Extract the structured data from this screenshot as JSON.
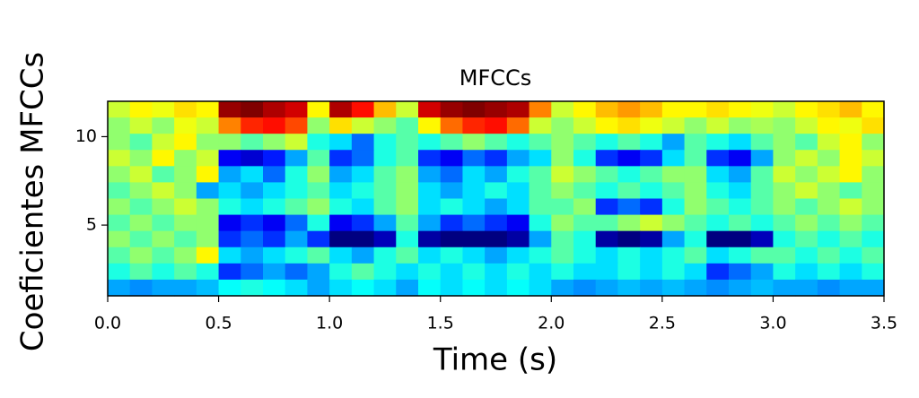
{
  "chart_data": {
    "type": "heatmap",
    "title": "MFCCs",
    "x_label": "Time (s)",
    "y_label": "Coeficientes MFCCs",
    "colormap": "jet",
    "xlim": [
      0,
      3.5
    ],
    "xticks": [
      {
        "value": 0,
        "label": "0.0"
      },
      0.5,
      {
        "value": 1,
        "label": "1.0"
      },
      1.5,
      {
        "value": 2,
        "label": "2.0"
      },
      2.5,
      {
        "value": 3,
        "label": "3.0"
      },
      3.5
    ],
    "ylim": [
      1,
      12
    ],
    "yticks": [
      5,
      10
    ],
    "values": [
      [
        0.55,
        0.6,
        0.58,
        0.62,
        0.6,
        0.9,
        0.92,
        0.88,
        0.85,
        0.6,
        0.88,
        0.8,
        0.65,
        0.55,
        0.85,
        0.9,
        0.92,
        0.9,
        0.88,
        0.7,
        0.55,
        0.6,
        0.65,
        0.68,
        0.65,
        0.6,
        0.6,
        0.62,
        0.6,
        0.58,
        0.55,
        0.6,
        0.62,
        0.65,
        0.6
      ],
      [
        0.5,
        0.55,
        0.5,
        0.58,
        0.55,
        0.7,
        0.78,
        0.8,
        0.75,
        0.5,
        0.62,
        0.55,
        0.5,
        0.45,
        0.6,
        0.72,
        0.78,
        0.8,
        0.72,
        0.55,
        0.5,
        0.55,
        0.6,
        0.62,
        0.58,
        0.55,
        0.5,
        0.55,
        0.5,
        0.52,
        0.5,
        0.55,
        0.6,
        0.58,
        0.62
      ],
      [
        0.5,
        0.45,
        0.55,
        0.6,
        0.5,
        0.5,
        0.45,
        0.5,
        0.55,
        0.4,
        0.35,
        0.25,
        0.4,
        0.45,
        0.4,
        0.45,
        0.5,
        0.45,
        0.4,
        0.45,
        0.5,
        0.45,
        0.4,
        0.45,
        0.4,
        0.3,
        0.45,
        0.4,
        0.35,
        0.45,
        0.5,
        0.45,
        0.55,
        0.6,
        0.5
      ],
      [
        0.55,
        0.5,
        0.6,
        0.5,
        0.55,
        0.15,
        0.12,
        0.18,
        0.3,
        0.45,
        0.2,
        0.25,
        0.4,
        0.45,
        0.2,
        0.15,
        0.25,
        0.2,
        0.3,
        0.35,
        0.5,
        0.4,
        0.2,
        0.15,
        0.2,
        0.35,
        0.45,
        0.2,
        0.15,
        0.3,
        0.5,
        0.55,
        0.5,
        0.6,
        0.55
      ],
      [
        0.5,
        0.55,
        0.45,
        0.5,
        0.6,
        0.3,
        0.35,
        0.25,
        0.4,
        0.5,
        0.3,
        0.35,
        0.45,
        0.5,
        0.3,
        0.25,
        0.35,
        0.3,
        0.4,
        0.45,
        0.55,
        0.5,
        0.45,
        0.4,
        0.45,
        0.5,
        0.5,
        0.35,
        0.3,
        0.45,
        0.55,
        0.5,
        0.55,
        0.6,
        0.5
      ],
      [
        0.45,
        0.5,
        0.55,
        0.5,
        0.3,
        0.35,
        0.3,
        0.35,
        0.4,
        0.45,
        0.35,
        0.4,
        0.45,
        0.5,
        0.35,
        0.3,
        0.35,
        0.4,
        0.35,
        0.45,
        0.5,
        0.45,
        0.4,
        0.45,
        0.4,
        0.45,
        0.5,
        0.4,
        0.35,
        0.45,
        0.5,
        0.55,
        0.5,
        0.45,
        0.5
      ],
      [
        0.5,
        0.45,
        0.5,
        0.55,
        0.5,
        0.4,
        0.35,
        0.4,
        0.45,
        0.5,
        0.4,
        0.35,
        0.45,
        0.5,
        0.35,
        0.4,
        0.35,
        0.3,
        0.35,
        0.45,
        0.45,
        0.5,
        0.2,
        0.25,
        0.2,
        0.4,
        0.5,
        0.45,
        0.4,
        0.45,
        0.5,
        0.45,
        0.5,
        0.55,
        0.5
      ],
      [
        0.45,
        0.5,
        0.45,
        0.5,
        0.5,
        0.15,
        0.2,
        0.15,
        0.25,
        0.4,
        0.15,
        0.2,
        0.3,
        0.45,
        0.3,
        0.2,
        0.25,
        0.2,
        0.15,
        0.4,
        0.5,
        0.45,
        0.45,
        0.5,
        0.55,
        0.5,
        0.45,
        0.4,
        0.45,
        0.4,
        0.45,
        0.5,
        0.45,
        0.5,
        0.45
      ],
      [
        0.5,
        0.45,
        0.5,
        0.45,
        0.5,
        0.2,
        0.25,
        0.2,
        0.3,
        0.2,
        0.05,
        0.05,
        0.1,
        0.4,
        0.08,
        0.05,
        0.05,
        0.05,
        0.08,
        0.3,
        0.45,
        0.4,
        0.08,
        0.05,
        0.08,
        0.3,
        0.4,
        0.05,
        0.05,
        0.1,
        0.4,
        0.45,
        0.4,
        0.45,
        0.4
      ],
      [
        0.45,
        0.5,
        0.45,
        0.5,
        0.6,
        0.35,
        0.3,
        0.35,
        0.4,
        0.45,
        0.35,
        0.3,
        0.4,
        0.45,
        0.35,
        0.4,
        0.35,
        0.3,
        0.35,
        0.4,
        0.45,
        0.4,
        0.35,
        0.4,
        0.35,
        0.4,
        0.45,
        0.35,
        0.4,
        0.45,
        0.45,
        0.4,
        0.45,
        0.4,
        0.45
      ],
      [
        0.4,
        0.45,
        0.4,
        0.45,
        0.4,
        0.2,
        0.25,
        0.3,
        0.25,
        0.3,
        0.4,
        0.45,
        0.4,
        0.35,
        0.4,
        0.35,
        0.4,
        0.35,
        0.4,
        0.35,
        0.4,
        0.35,
        0.35,
        0.4,
        0.35,
        0.4,
        0.35,
        0.2,
        0.25,
        0.3,
        0.4,
        0.35,
        0.4,
        0.35,
        0.4
      ],
      [
        0.3,
        0.28,
        0.3,
        0.3,
        0.32,
        0.38,
        0.4,
        0.38,
        0.35,
        0.3,
        0.35,
        0.38,
        0.35,
        0.3,
        0.38,
        0.35,
        0.38,
        0.35,
        0.38,
        0.35,
        0.3,
        0.28,
        0.3,
        0.32,
        0.3,
        0.32,
        0.3,
        0.28,
        0.3,
        0.32,
        0.3,
        0.3,
        0.28,
        0.3,
        0.3
      ]
    ]
  }
}
